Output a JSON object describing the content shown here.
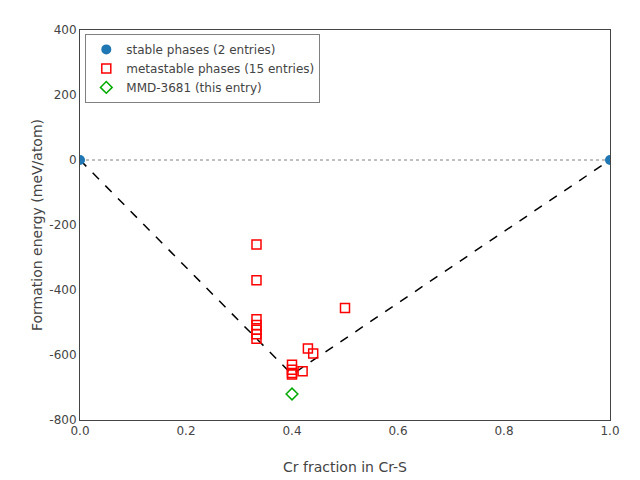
{
  "chart_data": {
    "type": "scatter",
    "xlabel": "Cr fraction in Cr-S",
    "ylabel": "Formation energy (meV/atom)",
    "xlim": [
      0.0,
      1.0
    ],
    "ylim": [
      -800,
      400
    ],
    "xticks": [
      {
        "value": 0.0,
        "label": "0.0"
      },
      0.2,
      0.4,
      0.6,
      0.8,
      {
        "value": 1.0,
        "label": "1.0"
      }
    ],
    "yticks": [
      -800,
      -600,
      -400,
      -200,
      0,
      200,
      400
    ],
    "grid": false,
    "legend": "upper left",
    "series": [
      {
        "type": "hline",
        "values": [
          0.0
        ],
        "color": "gray",
        "line_style": "dotted"
      },
      {
        "type": "line",
        "x": [
          0.0,
          0.4,
          1.0
        ],
        "values": [
          0.0,
          -660,
          0.0
        ],
        "color": "black",
        "line_style": "dashed"
      },
      {
        "type": "scatter",
        "name": "stable phases (2 entries)",
        "color": "#1f77b4",
        "marker": "circle",
        "x": [
          0.0,
          1.0
        ],
        "values": [
          0.0,
          0.0
        ]
      },
      {
        "type": "scatter",
        "name": "metastable phases (15 entries)",
        "color": "#ff0000",
        "marker": "square-open",
        "x": [
          0.333,
          0.333,
          0.333,
          0.333,
          0.333,
          0.333,
          0.333,
          0.4,
          0.4,
          0.43,
          0.44,
          0.5,
          0.4,
          0.4,
          0.42
        ],
        "values": [
          -260,
          -370,
          -490,
          -508,
          -522,
          -536,
          -550,
          -630,
          -645,
          -580,
          -595,
          -455,
          -660,
          -655,
          -650
        ]
      },
      {
        "type": "scatter",
        "name": "MMD-3681 (this entry)",
        "color": "#00aa00",
        "marker": "diamond-open",
        "x": [
          0.4
        ],
        "values": [
          -720
        ]
      }
    ]
  }
}
